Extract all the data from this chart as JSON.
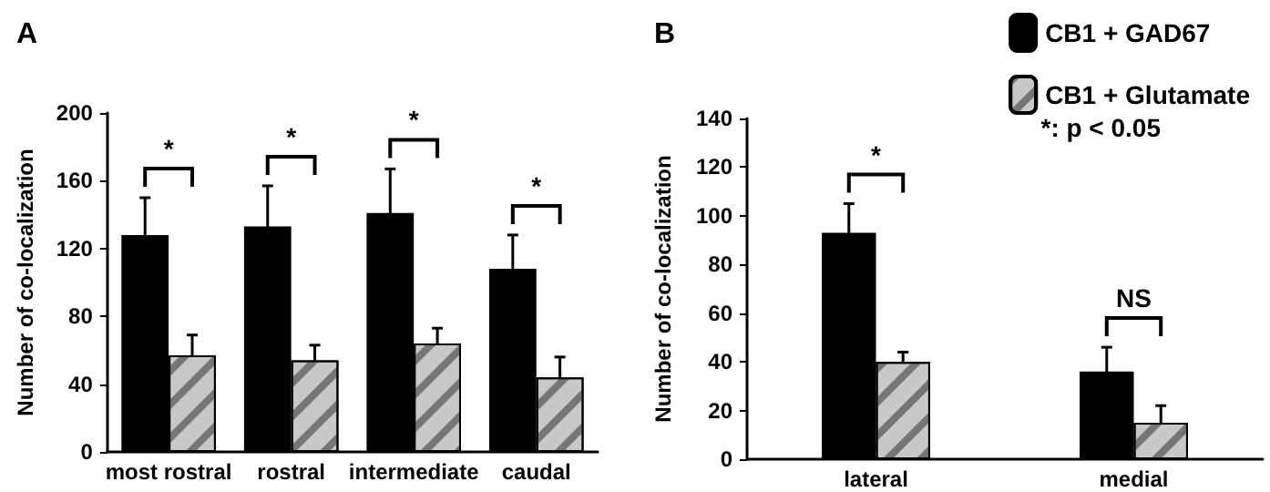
{
  "chart_data": [
    {
      "type": "bar",
      "title": "A",
      "ylabel": "Number of co-localization",
      "categories": [
        "most rostral",
        "rostral",
        "intermediate",
        "caudal"
      ],
      "series": [
        {
          "color": "#000000",
          "values": [
            128,
            133,
            141,
            108
          ],
          "errors": [
            22,
            24,
            26,
            20
          ]
        },
        {
          "color": "#c8c8c8",
          "values": [
            57,
            54,
            64,
            44
          ],
          "errors": [
            12,
            9,
            9,
            12
          ]
        }
      ],
      "ylim": [
        0,
        200
      ],
      "yticks": [
        0,
        40,
        80,
        120,
        160,
        200
      ],
      "annotations": [
        "*",
        "*",
        "*",
        "*"
      ]
    },
    {
      "type": "bar",
      "title": "B",
      "ylabel": "Number of co-localization",
      "categories": [
        "lateral",
        "medial"
      ],
      "series": [
        {
          "name": "CB1 + GAD67",
          "color": "#000000",
          "values": [
            93,
            36
          ],
          "errors": [
            12,
            10
          ]
        },
        {
          "name": "CB1 + Glutamate",
          "color": "#c8c8c8",
          "values": [
            40,
            15
          ],
          "errors": [
            4,
            7
          ]
        }
      ],
      "ylim": [
        0,
        140
      ],
      "yticks": [
        0,
        20,
        40,
        60,
        80,
        100,
        120,
        140
      ],
      "legend": "top right",
      "annotations": [
        "*",
        "NS",
        "*: p < 0.05"
      ]
    }
  ]
}
